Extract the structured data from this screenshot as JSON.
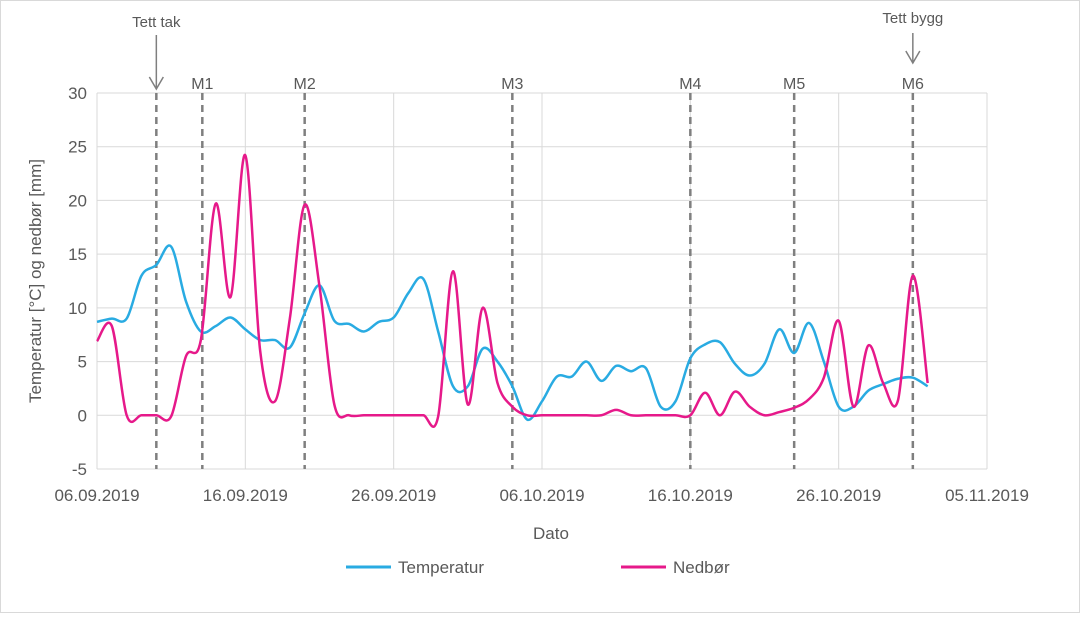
{
  "chart_data": {
    "type": "line",
    "xlabel": "Dato",
    "ylabel": "Temperatur [°C] og nedbør [mm]",
    "ylim": [
      -5,
      30
    ],
    "yticks": [
      -5,
      0,
      5,
      10,
      15,
      20,
      25,
      30
    ],
    "xlim_days": [
      0,
      60
    ],
    "xtick_labels": [
      "06.09.2019",
      "16.09.2019",
      "26.09.2019",
      "06.10.2019",
      "16.10.2019",
      "26.10.2019",
      "05.11.2019"
    ],
    "x_unit": "days since 06.09.2019",
    "grid": true,
    "legend_position": "bottom",
    "series": [
      {
        "name": "Temperatur",
        "color": "#29abe2",
        "x": [
          0,
          1,
          2,
          3,
          4,
          5,
          6,
          7,
          8,
          9,
          10,
          11,
          12,
          13,
          14,
          15,
          16,
          17,
          18,
          19,
          20,
          21,
          22,
          23,
          24,
          25,
          26,
          27,
          28,
          29,
          30,
          31,
          32,
          33,
          34,
          35,
          36,
          37,
          38,
          39,
          40,
          41,
          42,
          43,
          44,
          45,
          46,
          47,
          48,
          49,
          50,
          51,
          52,
          53,
          54,
          55,
          56
        ],
        "values": [
          8.7,
          9,
          9,
          13,
          14,
          15.7,
          10.6,
          7.8,
          8.3,
          9.1,
          8,
          7,
          7,
          6.3,
          9.5,
          12.1,
          8.8,
          8.5,
          7.8,
          8.7,
          9.1,
          11.4,
          12.7,
          7.8,
          2.7,
          2.7,
          6.2,
          5,
          2.7,
          -0.4,
          1.3,
          3.6,
          3.6,
          5,
          3.2,
          4.6,
          4.1,
          4.4,
          0.8,
          1.3,
          5.3,
          6.6,
          6.8,
          4.8,
          3.7,
          4.8,
          8,
          5.8,
          8.6,
          5,
          0.8,
          0.8,
          2.3,
          2.9,
          3.4,
          3.5,
          2.7
        ]
      },
      {
        "name": "Nedbør",
        "color": "#e6198a",
        "x": [
          0,
          1,
          2,
          3,
          4,
          5,
          6,
          7,
          8,
          9,
          10,
          11,
          12,
          13,
          14,
          15,
          16,
          17,
          18,
          19,
          20,
          21,
          22,
          23,
          24,
          25,
          26,
          27,
          28,
          29,
          30,
          31,
          32,
          33,
          34,
          35,
          36,
          37,
          38,
          39,
          40,
          41,
          42,
          43,
          44,
          45,
          46,
          47,
          48,
          49,
          50,
          51,
          52,
          53,
          54,
          55,
          56
        ],
        "values": [
          6.9,
          8.3,
          0,
          0,
          0,
          -0.1,
          5.5,
          7,
          19.7,
          11,
          24.2,
          6,
          1.3,
          9,
          19.6,
          12,
          1,
          0,
          0,
          0,
          0,
          0,
          0,
          -0.1,
          13.4,
          1,
          10,
          3,
          0.8,
          0,
          0,
          0,
          0,
          0,
          0,
          0.5,
          0,
          0,
          0,
          0,
          0,
          2.1,
          0,
          2.2,
          0.8,
          0,
          0.3,
          0.7,
          1.5,
          3.5,
          8.8,
          0.8,
          6.5,
          3,
          1.4,
          13,
          3
        ]
      }
    ],
    "annotations": [
      {
        "label": "M1",
        "day": 7.1
      },
      {
        "label": "M2",
        "day": 14
      },
      {
        "label": "M3",
        "day": 28
      },
      {
        "label": "M4",
        "day": 40
      },
      {
        "label": "M5",
        "day": 47
      },
      {
        "label": "M6",
        "day": 55
      }
    ],
    "arrow_annotations": [
      {
        "label": "Tett tak",
        "day": 4
      },
      {
        "label": "Tett bygg",
        "day": 55
      }
    ]
  }
}
